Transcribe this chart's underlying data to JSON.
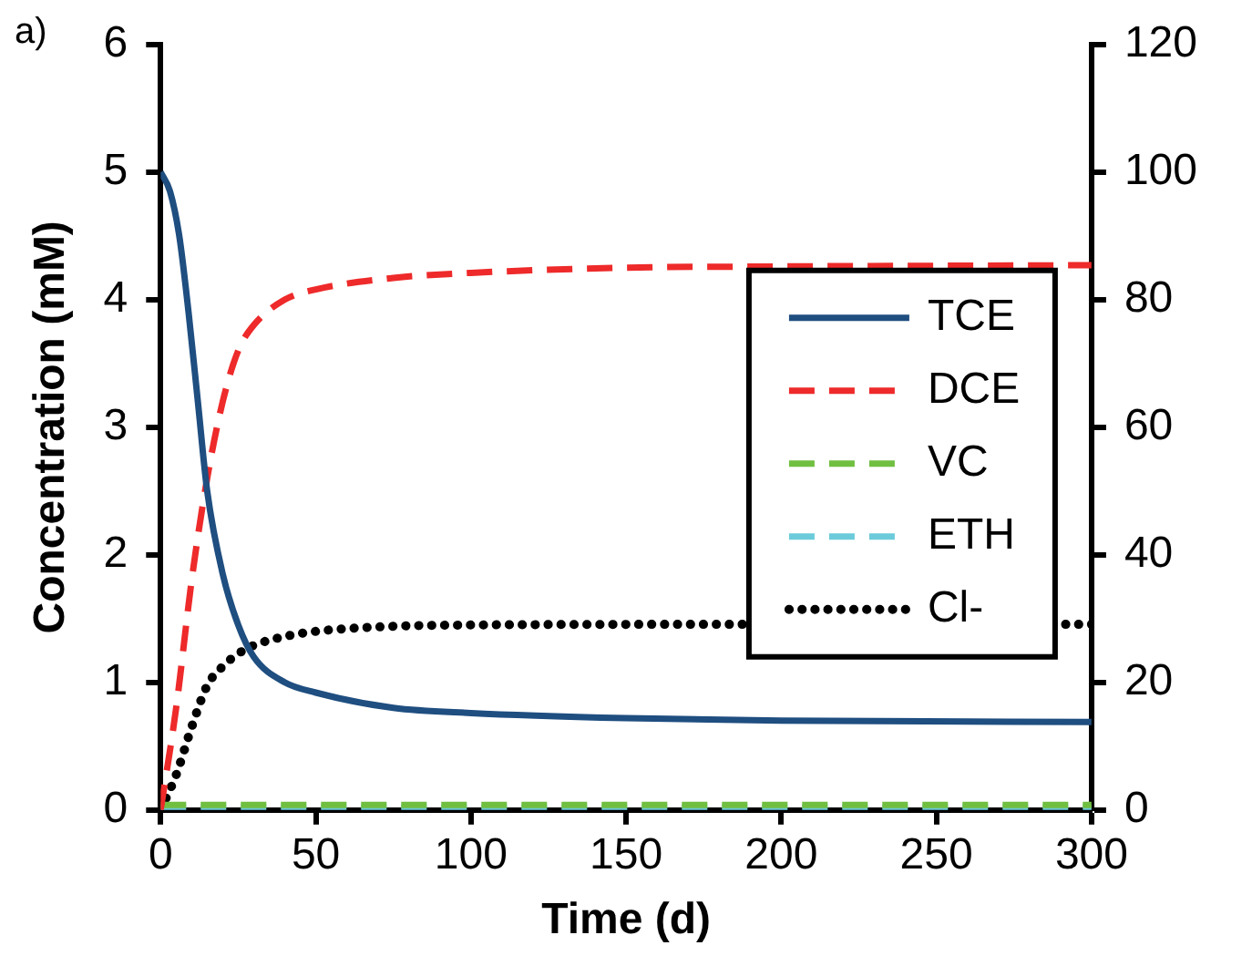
{
  "chart_data": {
    "type": "line",
    "xlabel": "Time (d)",
    "ylabel": "Concentration (mM)",
    "annotations": [
      "a)"
    ],
    "xlim": [
      0,
      300
    ],
    "xticks": [
      0,
      50,
      100,
      150,
      200,
      250,
      300
    ],
    "ylim": [
      0,
      6
    ],
    "yticks": [
      0,
      1,
      2,
      3,
      4,
      5,
      6
    ],
    "y2lim": [
      0,
      120
    ],
    "y2ticks": [
      0,
      20,
      40,
      60,
      80,
      100,
      120
    ],
    "grid": false,
    "legend": "right",
    "marker": "none",
    "series": [
      {
        "name": "TCE",
        "color": "#1f4e80",
        "line_style": "solid",
        "x": [
          0,
          3,
          6,
          9,
          12,
          15,
          20,
          25,
          30,
          40,
          50,
          75,
          100,
          150,
          200,
          300
        ],
        "values": [
          5,
          4.85,
          4.5,
          3.9,
          3.2,
          2.5,
          1.85,
          1.45,
          1.2,
          1.0,
          0.92,
          0.8,
          0.76,
          0.72,
          0.7,
          0.69
        ]
      },
      {
        "name": "DCE",
        "color": "#ee2a2a",
        "line_style": "dashed",
        "x": [
          0,
          5,
          10,
          15,
          20,
          25,
          30,
          40,
          50,
          75,
          100,
          150,
          200,
          300
        ],
        "values": [
          0,
          0.8,
          1.8,
          2.6,
          3.2,
          3.6,
          3.8,
          4.0,
          4.08,
          4.17,
          4.21,
          4.25,
          4.26,
          4.27
        ]
      },
      {
        "name": "VC",
        "color": "#70bf41",
        "line_style": "dashed",
        "x": [
          0,
          300
        ],
        "values": [
          0.04,
          0.04
        ]
      },
      {
        "name": "ETH",
        "color": "#6ccbdb",
        "line_style": "dashed",
        "x": [
          0,
          300
        ],
        "values": [
          0.02,
          0.02
        ]
      },
      {
        "name": "Cl-",
        "color": "#000000",
        "line_style": "dotted",
        "axis": "y2",
        "x": [
          0,
          5,
          10,
          15,
          20,
          25,
          30,
          40,
          50,
          75,
          100,
          180,
          292,
          300
        ],
        "values": [
          0,
          5.5,
          13,
          19.5,
          22.5,
          24.5,
          25.8,
          27.2,
          28,
          28.8,
          29,
          29.1,
          29.1,
          29.1
        ]
      }
    ]
  }
}
